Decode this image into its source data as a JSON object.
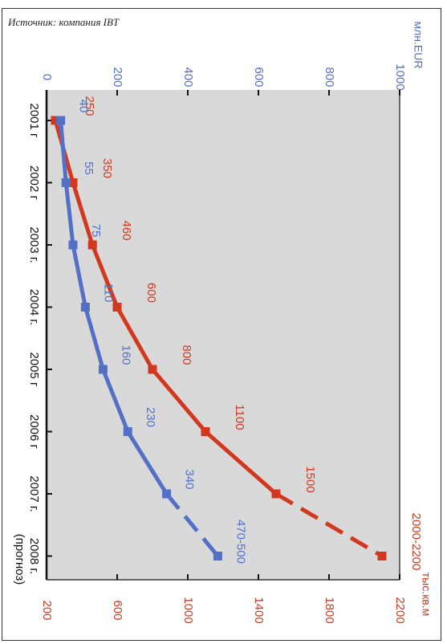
{
  "source_note": "Источник: компания IBT",
  "chart_data": {
    "type": "line",
    "categories": [
      "2001 г",
      "2002 г",
      "2003 г.",
      "2004 г.",
      "2005 г",
      "2006 г",
      "2007 г.",
      "2008 г. (прогноз)"
    ],
    "left_axis": {
      "unit": "млн.EUR",
      "ticks": [
        0,
        200,
        400,
        600,
        800,
        1000
      ],
      "range": [
        0,
        1000
      ]
    },
    "right_axis": {
      "unit": "тыс.кв.м",
      "ticks": [
        200,
        600,
        1000,
        1400,
        1800,
        2200
      ],
      "range": [
        200,
        2200
      ]
    },
    "series": [
      {
        "axis": "right",
        "color": "#d2381e",
        "values": [
          250,
          350,
          460,
          600,
          800,
          1100,
          1500,
          2100
        ],
        "labels": [
          "250",
          "350",
          "460",
          "600",
          "800",
          "1100",
          "1500",
          "2000-2200"
        ],
        "forecast_from_index": 6
      },
      {
        "axis": "left",
        "color": "#5470c6",
        "values": [
          40,
          55,
          75,
          110,
          160,
          230,
          340,
          485
        ],
        "labels": [
          "40",
          "55",
          "75",
          "110",
          "160",
          "230",
          "340",
          "470-500"
        ],
        "forecast_from_index": 6
      }
    ],
    "grid": false,
    "background": "#d9d9d9"
  }
}
